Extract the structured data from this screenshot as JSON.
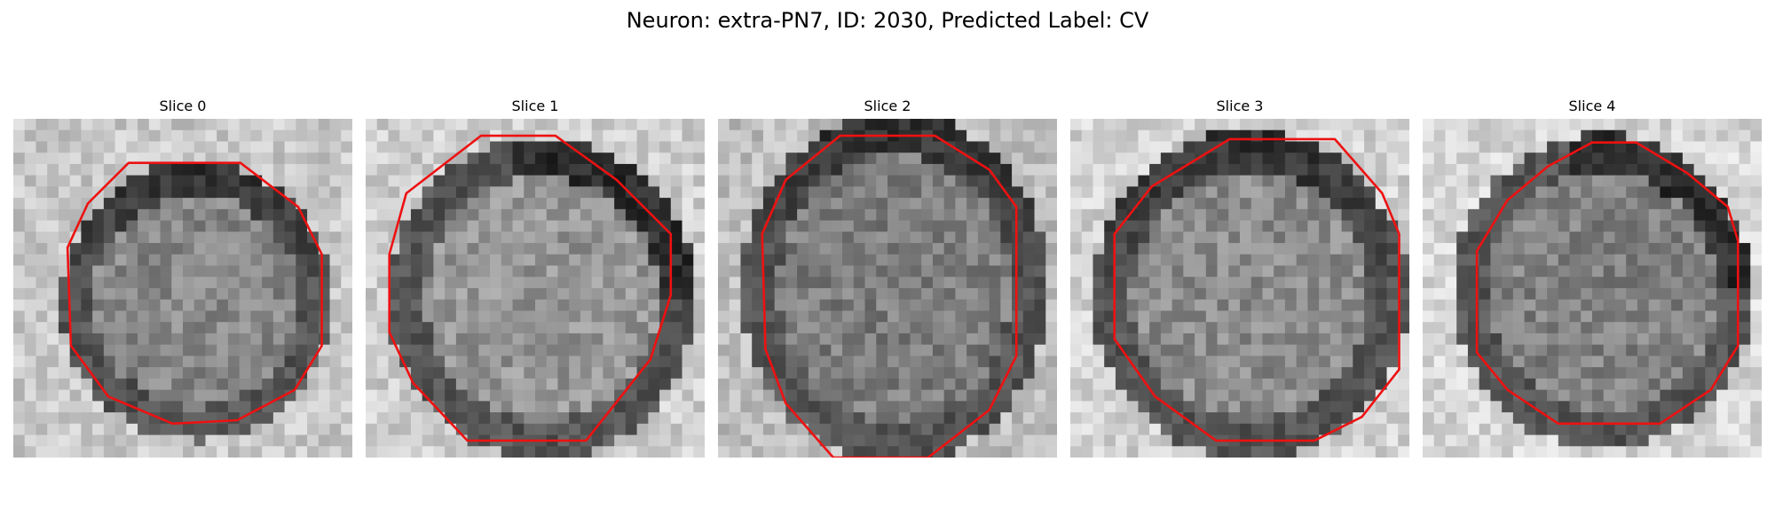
{
  "figure": {
    "title": "Neuron: extra-PN7, ID: 2030, Predicted Label: CV"
  },
  "panels": [
    {
      "title": "Slice 0"
    },
    {
      "title": "Slice 1"
    },
    {
      "title": "Slice 2"
    },
    {
      "title": "Slice 3"
    },
    {
      "title": "Slice 4"
    }
  ],
  "colors": {
    "contour": "#ee1111",
    "background": "#ffffff"
  }
}
